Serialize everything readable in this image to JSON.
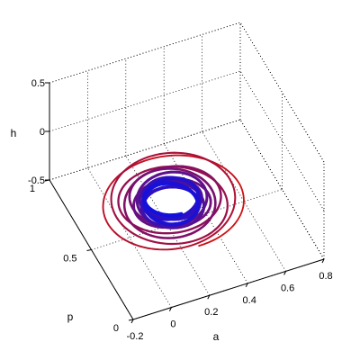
{
  "chart_data": {
    "type": "line",
    "view": "3d",
    "title": "",
    "xlabel": "a",
    "ylabel": "p",
    "zlabel": "h",
    "xlim": [
      -0.2,
      0.8
    ],
    "ylim": [
      0,
      1
    ],
    "zlim": [
      -0.5,
      0.5
    ],
    "x_ticks": [
      "-0.2",
      "0",
      "0.2",
      "0.4",
      "0.6",
      "0.8"
    ],
    "y_ticks": [
      "0",
      "0.5",
      "1"
    ],
    "z_ticks": [
      "-0.5",
      "0",
      "0.5"
    ],
    "grid": true,
    "colormap": {
      "start_color": "#d01010",
      "end_color": "#1010e0",
      "description": "trajectory spirals inward from red outer turns to a dense blue limit cycle"
    },
    "series": [
      {
        "kind": "spiral_trajectory",
        "center": {
          "a": 0.28,
          "p": 0.64,
          "h": -0.5
        },
        "outer_radius": 0.36,
        "inner_radius": 0.13,
        "turns": 13
      }
    ]
  }
}
